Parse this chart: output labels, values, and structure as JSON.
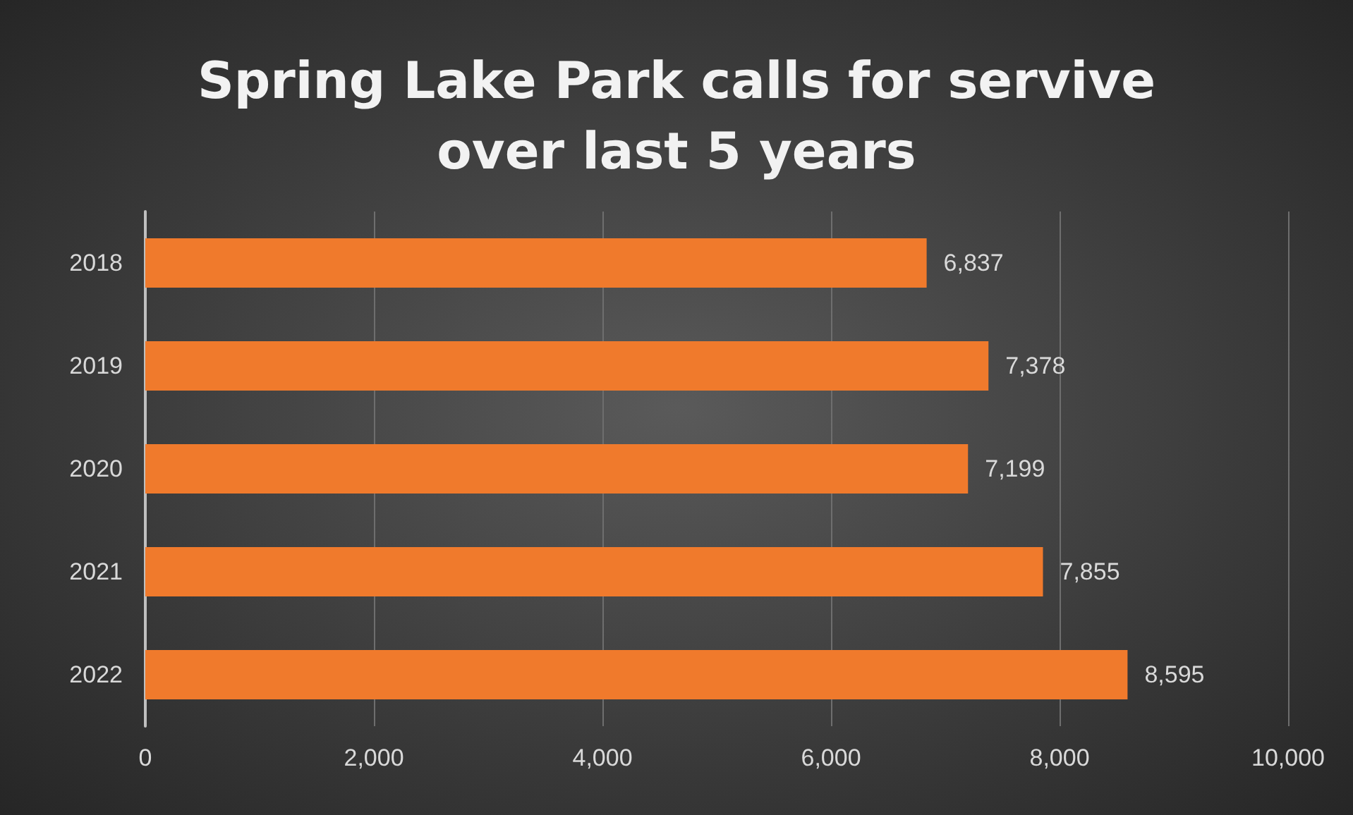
{
  "chart_data": {
    "type": "bar",
    "orientation": "horizontal",
    "title": "Spring Lake Park calls for servive\nover last 5 years",
    "categories": [
      "2018",
      "2019",
      "2020",
      "2021",
      "2022"
    ],
    "values": [
      6837,
      7378,
      7199,
      7855,
      8595
    ],
    "value_labels": [
      "6,837",
      "7,378",
      "7,199",
      "7,855",
      "8,595"
    ],
    "color": "#f07a2c",
    "xlim": [
      0,
      10000
    ],
    "xticks": [
      {
        "value": 0,
        "label": "0"
      },
      {
        "value": 2000,
        "label": "2,000"
      },
      {
        "value": 4000,
        "label": "4,000"
      },
      {
        "value": 6000,
        "label": "6,000"
      },
      {
        "value": 8000,
        "label": "8,000"
      },
      {
        "value": 10000,
        "label": "10,000"
      }
    ],
    "grid": "x"
  }
}
